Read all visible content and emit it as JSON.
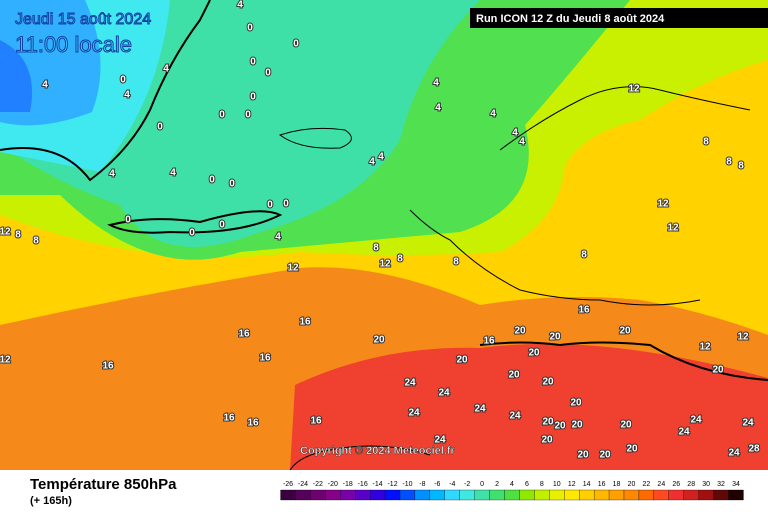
{
  "header": {
    "date": "Jeudi 15 août 2024",
    "time": "11:00 locale",
    "run": "Run ICON 12 Z du Jeudi 8 août 2024"
  },
  "copyright": "Copyright © 2024 Meteociel.fr",
  "footer": {
    "title": "Température 850hPa",
    "lead": "(+ 165h)"
  },
  "colorbar": {
    "labels": [
      -26,
      -24,
      -22,
      -20,
      -18,
      -16,
      -14,
      -12,
      -10,
      -8,
      -6,
      -4,
      -2,
      0,
      2,
      4,
      6,
      8,
      10,
      12,
      14,
      16,
      18,
      20,
      22,
      24,
      26,
      28,
      30,
      32,
      34
    ],
    "colors": [
      "#3a0040",
      "#55005a",
      "#6e0070",
      "#870088",
      "#7a00a8",
      "#5a00c8",
      "#3000e0",
      "#0010ff",
      "#0050ff",
      "#0090ff",
      "#00b8ff",
      "#30d8ff",
      "#40e8e0",
      "#40e0a8",
      "#40e070",
      "#50e040",
      "#90e800",
      "#c0f000",
      "#e8f000",
      "#ffe800",
      "#ffd000",
      "#ffb800",
      "#ffa000",
      "#ff8800",
      "#ff6a00",
      "#ff4a20",
      "#f03030",
      "#d02020",
      "#a01010",
      "#600808",
      "#200000"
    ]
  },
  "contour_labels": [
    4,
    0,
    0,
    4,
    0,
    4,
    4,
    0,
    0,
    0,
    0,
    0,
    0,
    4,
    4,
    4,
    4,
    4,
    4,
    4,
    4,
    4,
    0,
    0,
    0,
    0,
    0,
    4,
    0,
    0,
    8,
    12,
    8,
    8,
    12,
    12,
    8,
    8,
    8,
    12,
    12,
    8,
    12,
    8,
    8,
    16,
    16,
    16,
    16,
    12,
    16,
    16,
    16,
    20,
    20,
    16,
    20,
    20,
    16,
    20,
    20,
    20,
    20,
    24,
    24,
    24,
    24,
    24,
    24,
    20,
    20,
    20,
    20,
    20,
    24,
    24,
    24,
    20,
    12,
    12,
    20,
    20,
    20,
    24,
    28,
    20
  ]
}
